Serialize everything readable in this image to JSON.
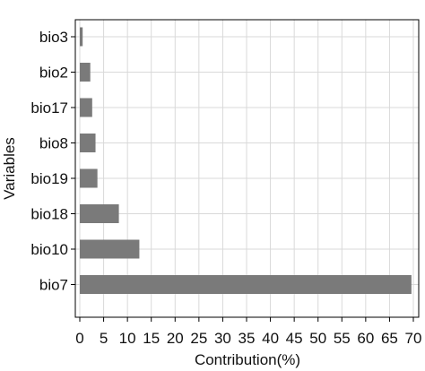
{
  "chart_data": {
    "type": "bar",
    "orientation": "horizontal",
    "title": "",
    "xlabel": "Contribution(%)",
    "ylabel": "Variables",
    "categories": [
      "bio3",
      "bio2",
      "bio17",
      "bio8",
      "bio19",
      "bio18",
      "bio10",
      "bio7"
    ],
    "values": [
      0.6,
      2.2,
      2.6,
      3.3,
      3.7,
      8.2,
      12.5,
      69.6
    ],
    "xlim": [
      0,
      70
    ],
    "xticks": [
      0,
      5,
      10,
      15,
      20,
      25,
      30,
      35,
      40,
      45,
      50,
      55,
      60,
      65,
      70
    ],
    "grid": true,
    "bar_color": "#7a7a7a"
  }
}
